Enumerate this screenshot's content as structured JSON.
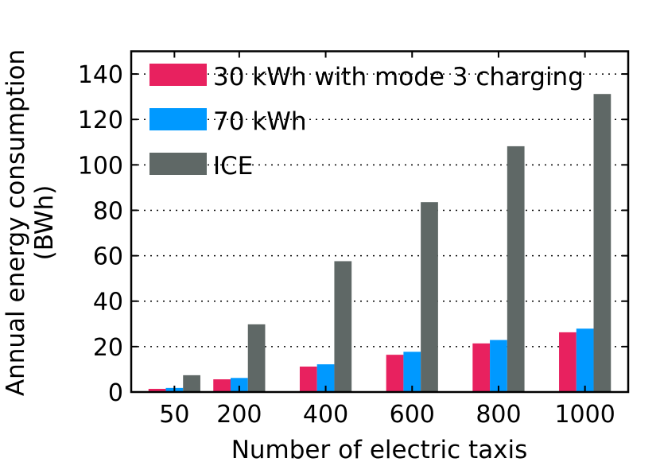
{
  "chart_data": {
    "type": "bar",
    "title": "",
    "xlabel": "Number of electric taxis",
    "ylabel": [
      "Annual energy consumption",
      "(BWh)"
    ],
    "x": [
      50,
      200,
      400,
      600,
      800,
      1000
    ],
    "x_tick_labels": [
      "50",
      "200",
      "400",
      "600",
      "800",
      "1000"
    ],
    "xlim": [
      -50,
      1100
    ],
    "ylim": [
      0,
      150
    ],
    "y_ticks": [
      0,
      20,
      40,
      60,
      80,
      100,
      120,
      140
    ],
    "y_tick_labels": [
      "0",
      "20",
      "40",
      "60",
      "80",
      "100",
      "120",
      "140"
    ],
    "grid": "horizontal dotted",
    "legend_position": "top-left",
    "series": [
      {
        "name": "30 kWh with mode 3 charging",
        "color": "#e8215f",
        "values": [
          1.4,
          5.6,
          11.2,
          16.4,
          21.4,
          26.3
        ]
      },
      {
        "name": "70 kWh",
        "color": "#0099ff",
        "values": [
          1.8,
          6.2,
          12.2,
          17.7,
          22.9,
          27.9
        ]
      },
      {
        "name": "ICE",
        "color": "#5f6866",
        "values": [
          7.4,
          29.8,
          57.6,
          83.6,
          108.2,
          131.2
        ]
      }
    ]
  }
}
